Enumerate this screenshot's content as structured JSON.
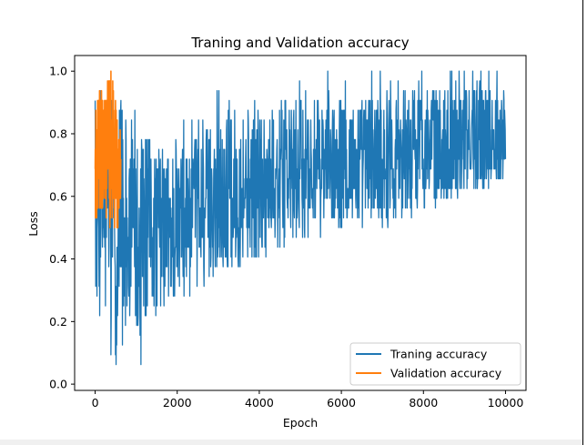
{
  "chart_data": {
    "type": "line",
    "title": "Traning and Validation accuracy",
    "xlabel": "Epoch",
    "ylabel": "Loss",
    "xlim": [
      -500,
      10500
    ],
    "ylim": [
      -0.02,
      1.05
    ],
    "xticks": [
      0,
      2000,
      4000,
      6000,
      8000,
      10000
    ],
    "yticks": [
      0.0,
      0.2,
      0.4,
      0.6,
      0.8,
      1.0
    ],
    "xtick_labels": [
      "0",
      "2000",
      "4000",
      "6000",
      "8000",
      "10000"
    ],
    "ytick_labels": [
      "0.0",
      "0.2",
      "0.4",
      "0.6",
      "0.8",
      "1.0"
    ],
    "grid": false,
    "legend_position": "lower-right",
    "series": [
      {
        "name": "Traning accuracy",
        "color": "#1f77b4",
        "x_range": [
          0,
          10000
        ],
        "trend_x": [
          0,
          500,
          1000,
          2000,
          3000,
          4000,
          5000,
          6000,
          7000,
          8000,
          9000,
          10000
        ],
        "trend_low": [
          0.25,
          0.1,
          0.2,
          0.25,
          0.35,
          0.4,
          0.45,
          0.5,
          0.5,
          0.55,
          0.6,
          0.65
        ],
        "trend_high": [
          0.85,
          0.95,
          0.8,
          0.75,
          0.85,
          0.9,
          0.9,
          0.9,
          0.95,
          0.95,
          0.95,
          0.95
        ]
      },
      {
        "name": "Validation accuracy",
        "color": "#ff7f0e",
        "x_range": [
          0,
          625
        ],
        "trend_x": [
          0,
          100,
          200,
          300,
          400,
          500,
          600
        ],
        "trend_low": [
          0.5,
          0.55,
          0.5,
          0.55,
          0.45,
          0.45,
          0.5
        ],
        "trend_high": [
          0.88,
          0.94,
          0.94,
          1.0,
          1.0,
          0.9,
          0.88
        ]
      }
    ]
  }
}
